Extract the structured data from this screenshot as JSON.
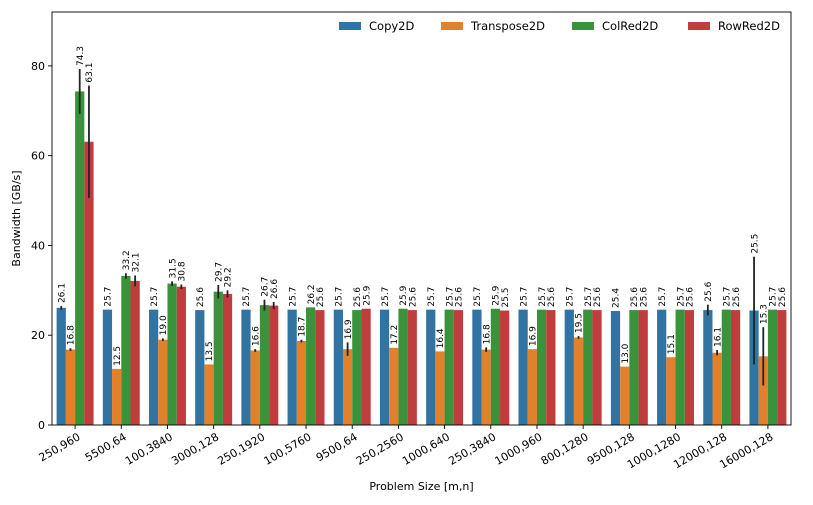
{
  "chart_data": {
    "type": "bar",
    "xlabel": "Problem Size [m,n]",
    "ylabel": "Bandwidth [GB/s]",
    "ylim": [
      0,
      92
    ],
    "yticks": [
      0,
      20,
      40,
      60,
      80
    ],
    "grid": false,
    "legend_position": "top-right",
    "categories": [
      "250,960",
      "5500,64",
      "100,3840",
      "3000,128",
      "250,1920",
      "100,5760",
      "9500,64",
      "250,2560",
      "1000,640",
      "250,3840",
      "1000,960",
      "800,1280",
      "9500,128",
      "1000,1280",
      "12000,128",
      "16000,128"
    ],
    "series": [
      {
        "name": "Copy2D",
        "color": "#3274a1",
        "values": [
          26.1,
          25.7,
          25.7,
          25.6,
          25.7,
          25.7,
          25.7,
          25.7,
          25.7,
          25.7,
          25.7,
          25.7,
          25.4,
          25.7,
          25.6,
          25.5
        ],
        "labels": [
          "26.1",
          "25.7",
          "25.7",
          "25.6",
          "25.7",
          "25.7",
          "25.7",
          "25.7",
          "25.7",
          "25.7",
          "25.7",
          "25.7",
          "25.4",
          "25.7",
          "25.6",
          "25.5"
        ],
        "err": [
          0.4,
          0,
          0,
          0,
          0,
          0,
          0,
          0,
          0,
          0,
          0,
          0,
          0,
          0,
          1.2,
          12
        ]
      },
      {
        "name": "Transpose2D",
        "color": "#e1812c",
        "values": [
          16.8,
          12.5,
          19.0,
          13.5,
          16.6,
          18.7,
          16.9,
          17.2,
          16.4,
          16.8,
          16.9,
          19.5,
          13.0,
          15.1,
          16.1,
          15.3
        ],
        "labels": [
          "16.8",
          "12.5",
          "19.0",
          "13.5",
          "16.6",
          "18.7",
          "16.9",
          "17.2",
          "16.4",
          "16.8",
          "16.9",
          "19.5",
          "13.0",
          "15.1",
          "16.1",
          "15.3"
        ],
        "err": [
          0.3,
          0,
          0.3,
          0,
          0.3,
          0.3,
          1.5,
          0,
          0,
          0.5,
          0,
          0.3,
          0,
          0,
          0.6,
          6.5
        ]
      },
      {
        "name": "ColRed2D",
        "color": "#3a923a",
        "values": [
          74.3,
          33.2,
          31.5,
          29.7,
          26.7,
          26.2,
          25.6,
          25.9,
          25.7,
          25.9,
          25.7,
          25.7,
          25.6,
          25.7,
          25.7,
          25.7
        ],
        "labels": [
          "74.3",
          "33.2",
          "31.5",
          "29.7",
          "26.7",
          "26.2",
          "25.6",
          "25.9",
          "25.7",
          "25.9",
          "25.7",
          "25.7",
          "25.6",
          "25.7",
          "25.7",
          "25.7"
        ],
        "err": [
          5,
          0.6,
          0.5,
          1.5,
          1.2,
          0,
          0,
          0,
          0,
          0,
          0,
          0,
          0,
          0,
          0,
          0
        ]
      },
      {
        "name": "RowRed2D",
        "color": "#c03d3e",
        "values": [
          63.1,
          32.1,
          30.8,
          29.2,
          26.6,
          25.6,
          25.9,
          25.6,
          25.6,
          25.5,
          25.6,
          25.6,
          25.6,
          25.6,
          25.6,
          25.6
        ],
        "labels": [
          "63.1",
          "32.1",
          "30.8",
          "29.2",
          "26.6",
          "25.6",
          "25.9",
          "25.6",
          "25.6",
          "25.5",
          "25.6",
          "25.6",
          "25.6",
          "25.6",
          "25.6",
          "25.6"
        ],
        "err": [
          12.5,
          1.2,
          0.5,
          0.8,
          0.8,
          0,
          0,
          0,
          0,
          0,
          0,
          0,
          0,
          0,
          0,
          0
        ]
      }
    ]
  }
}
